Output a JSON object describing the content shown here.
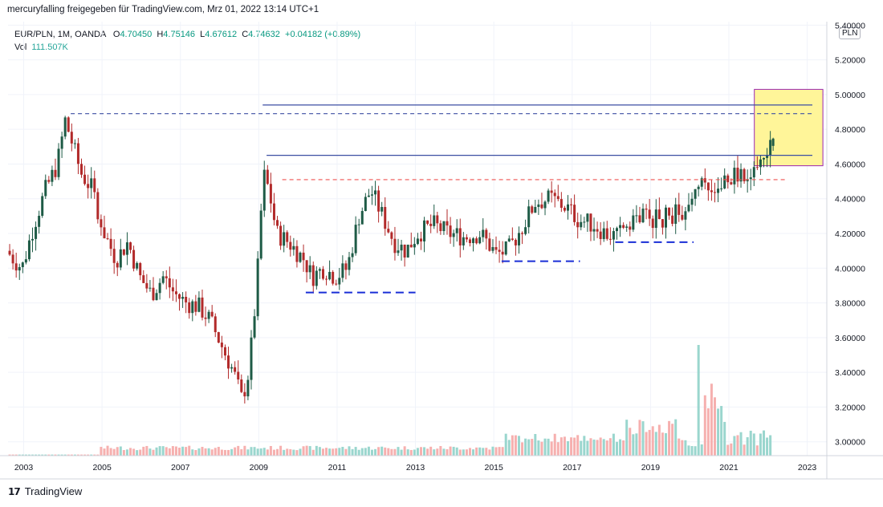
{
  "header": {
    "text": "mercuryfalling freigegeben für TradingView.com, Mrz 01, 2022 13:14 UTC+1"
  },
  "legend": {
    "symbol": "EUR/PLN, 1M, OANDA",
    "o_label": "O",
    "o": "4.70450",
    "h_label": "H",
    "h": "4.75146",
    "l_label": "L",
    "l": "4.67612",
    "c_label": "C",
    "c": "4.74632",
    "change": "+0.04182 (+0.89%)",
    "vol_label": "Vol",
    "vol": "111.507K"
  },
  "unit": "PLN",
  "footer": {
    "brand": "TradingView"
  },
  "colors": {
    "up": "#26a69a",
    "down": "#ef5350",
    "candle_up": "#1e5b46",
    "candle_down": "#b22a2a",
    "hline": "#3c4fa3",
    "dash_red": "#ef5350",
    "dash_blue": "#3c4fa3",
    "dash_navy": "#1a2fd6",
    "highlight": "#fff599"
  },
  "chart_data": {
    "type": "candlestick",
    "y_ticks": [
      "5.40000",
      "5.20000",
      "5.00000",
      "4.80000",
      "4.60000",
      "4.40000",
      "4.20000",
      "4.00000",
      "3.80000",
      "3.60000",
      "3.40000",
      "3.20000",
      "3.00000"
    ],
    "x_ticks": [
      "2003",
      "2005",
      "2007",
      "2009",
      "2011",
      "2013",
      "2015",
      "2017",
      "2019",
      "2021",
      "2023"
    ],
    "ylim": [
      2.92,
      5.42
    ],
    "xlim": [
      2002.6,
      2023.5
    ],
    "price_path": [
      [
        2002.6,
        4.1
      ],
      [
        2003.0,
        4.0
      ],
      [
        2003.3,
        4.25
      ],
      [
        2003.6,
        4.45
      ],
      [
        2003.9,
        4.6
      ],
      [
        2004.1,
        4.85
      ],
      [
        2004.2,
        4.78
      ],
      [
        2004.5,
        4.55
      ],
      [
        2004.8,
        4.45
      ],
      [
        2005.1,
        4.2
      ],
      [
        2005.4,
        4.05
      ],
      [
        2005.7,
        4.15
      ],
      [
        2006.0,
        3.95
      ],
      [
        2006.3,
        3.85
      ],
      [
        2006.6,
        3.95
      ],
      [
        2006.9,
        3.85
      ],
      [
        2007.2,
        3.8
      ],
      [
        2007.5,
        3.78
      ],
      [
        2007.8,
        3.7
      ],
      [
        2008.1,
        3.55
      ],
      [
        2008.4,
        3.4
      ],
      [
        2008.6,
        3.25
      ],
      [
        2008.75,
        3.35
      ],
      [
        2008.9,
        3.65
      ],
      [
        2009.05,
        4.1
      ],
      [
        2009.15,
        4.55
      ],
      [
        2009.3,
        4.45
      ],
      [
        2009.5,
        4.2
      ],
      [
        2009.8,
        4.15
      ],
      [
        2010.2,
        4.05
      ],
      [
        2010.4,
        3.95
      ],
      [
        2010.7,
        4.0
      ],
      [
        2011.0,
        3.95
      ],
      [
        2011.3,
        4.0
      ],
      [
        2011.6,
        4.3
      ],
      [
        2011.9,
        4.45
      ],
      [
        2012.2,
        4.3
      ],
      [
        2012.5,
        4.15
      ],
      [
        2012.8,
        4.1
      ],
      [
        2013.1,
        4.2
      ],
      [
        2013.5,
        4.25
      ],
      [
        2013.9,
        4.2
      ],
      [
        2014.3,
        4.18
      ],
      [
        2014.7,
        4.2
      ],
      [
        2015.1,
        4.08
      ],
      [
        2015.4,
        4.1
      ],
      [
        2015.8,
        4.25
      ],
      [
        2016.1,
        4.38
      ],
      [
        2016.5,
        4.4
      ],
      [
        2016.9,
        4.35
      ],
      [
        2017.2,
        4.28
      ],
      [
        2017.6,
        4.25
      ],
      [
        2017.9,
        4.2
      ],
      [
        2018.2,
        4.18
      ],
      [
        2018.5,
        4.28
      ],
      [
        2018.9,
        4.3
      ],
      [
        2019.3,
        4.28
      ],
      [
        2019.7,
        4.32
      ],
      [
        2020.0,
        4.3
      ],
      [
        2020.2,
        4.48
      ],
      [
        2020.5,
        4.45
      ],
      [
        2020.8,
        4.5
      ],
      [
        2021.1,
        4.52
      ],
      [
        2021.5,
        4.55
      ],
      [
        2021.8,
        4.58
      ],
      [
        2022.0,
        4.62
      ],
      [
        2022.15,
        4.72
      ]
    ],
    "last_candle": {
      "o": 4.7045,
      "h": 4.75146,
      "l": 4.67612,
      "c": 4.74632
    },
    "annotations": {
      "solid_hlines": [
        {
          "y": 4.94,
          "x0": 2009.1,
          "x1": 2024.0
        },
        {
          "y": 4.65,
          "x0": 2009.2,
          "x1": 2024.0
        }
      ],
      "dashed_hlines": [
        {
          "y": 4.89,
          "x0": 2004.2,
          "x1": 2024.0,
          "style": "dash_blue"
        },
        {
          "y": 4.51,
          "x0": 2009.6,
          "x1": 2022.5,
          "style": "dash_red"
        },
        {
          "y": 3.86,
          "x0": 2010.2,
          "x1": 2013.0,
          "style": "dash_navy"
        },
        {
          "y": 4.04,
          "x0": 2015.2,
          "x1": 2017.2,
          "style": "dash_navy"
        },
        {
          "y": 4.15,
          "x0": 2018.1,
          "x1": 2020.1,
          "style": "dash_navy"
        }
      ],
      "highlight_box": {
        "x0": 2021.65,
        "x1": 2023.4,
        "y0": 4.59,
        "y1": 5.03
      }
    },
    "volume_peaks": [
      {
        "x": 2020.2,
        "v": 1.0
      },
      {
        "x": 2020.5,
        "v": 0.65
      }
    ]
  }
}
